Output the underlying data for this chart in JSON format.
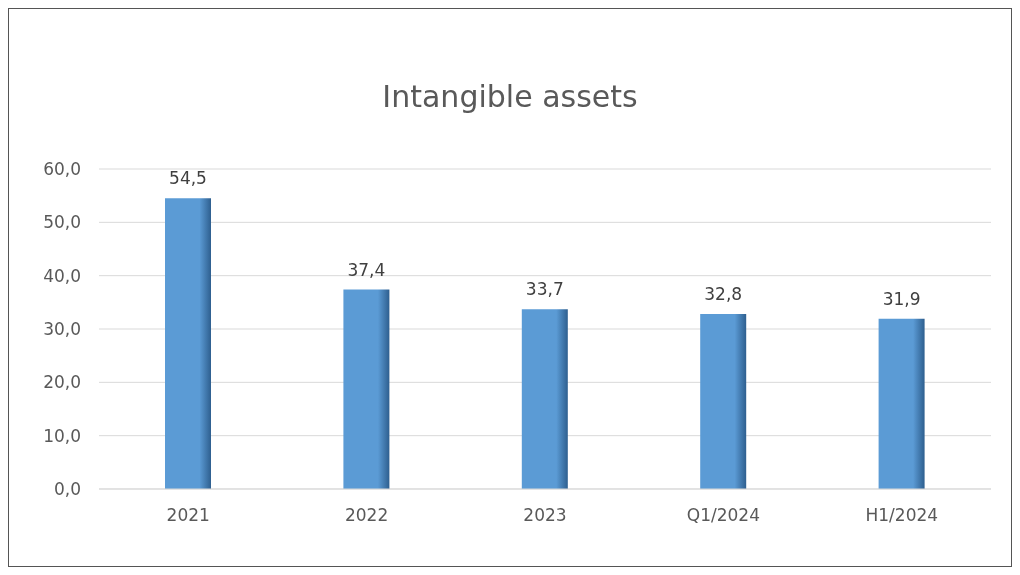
{
  "chart_data": {
    "type": "bar",
    "title": "Intangible assets",
    "categories": [
      "2021",
      "2022",
      "2023",
      "Q1/2024",
      "H1/2024"
    ],
    "values": [
      54.5,
      37.4,
      33.7,
      32.8,
      31.9
    ],
    "value_labels": [
      "54,5",
      "37,4",
      "33,7",
      "32,8",
      "31,9"
    ],
    "color": "#5b9bd5",
    "ylim": [
      0,
      60
    ],
    "yticks": [
      {
        "value": 0,
        "label": "0,0"
      },
      {
        "value": 10,
        "label": "10,0"
      },
      {
        "value": 20,
        "label": "20,0"
      },
      {
        "value": 30,
        "label": "30,0"
      },
      {
        "value": 40,
        "label": "40,0"
      },
      {
        "value": 50,
        "label": "50,0"
      },
      {
        "value": 60,
        "label": "60,0"
      }
    ],
    "grid": "y",
    "legend": false
  }
}
